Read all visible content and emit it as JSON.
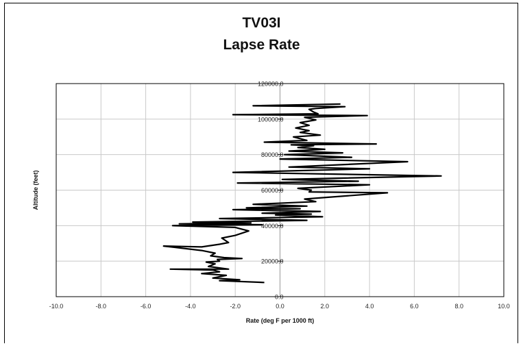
{
  "chart_data": {
    "type": "line",
    "title": "TV03I",
    "subtitle": "Lapse Rate",
    "xlabel": "Rate (deg F per 1000 ft)",
    "ylabel": "Altitude (feet)",
    "xlim": [
      -10.0,
      10.0
    ],
    "ylim": [
      0,
      120000
    ],
    "x_ticks": [
      "-10.0",
      "-8.0",
      "-6.0",
      "-4.0",
      "-2.0",
      "0.0",
      "2.0",
      "4.0",
      "6.0",
      "8.0",
      "10.0"
    ],
    "y_ticks": [
      "0.0",
      "20000.0",
      "40000.0",
      "60000.0",
      "80000.0",
      "100000.0",
      "120000.0"
    ],
    "grid": true,
    "legend": "none",
    "line_color": "#000000",
    "series": [
      {
        "x": [
          -0.7,
          -2.7,
          -1.8,
          -3.0,
          -2.4,
          -3.5,
          -2.7,
          -3.0,
          -4.9,
          -2.3,
          -3.2,
          -2.9,
          -3.3,
          -2.7,
          -2.8,
          -1.7,
          -2.5,
          -3.1,
          -2.9,
          -3.5,
          -5.2,
          -3.5,
          -2.7,
          -2.3,
          -2.6,
          -2.0,
          -1.4,
          -2.0,
          -4.8,
          -0.8,
          -4.5,
          -1.3,
          -3.9,
          1.2,
          -2.7,
          1.9,
          -0.2,
          1.4,
          -0.8,
          1.8,
          -2.1,
          0.9,
          -1.5,
          1.2,
          -1.2,
          1.6,
          1.1,
          4.8,
          1.3,
          1.4,
          0.8,
          4.0,
          -1.9,
          3.5,
          0.1,
          7.2,
          -2.1,
          4.0,
          0.4,
          5.7,
          0.0,
          3.2,
          0.2,
          2.8,
          0.4,
          2.0,
          0.8,
          1.5,
          0.5,
          4.3,
          -0.7,
          1.2,
          0.6,
          1.8,
          0.9,
          1.3,
          0.7,
          1.3,
          0.9,
          1.6,
          1.1,
          3.9,
          -2.1,
          1.7,
          1.5,
          1.3,
          1.6,
          2.9,
          -1.2,
          2.7
        ],
        "y": [
          8000,
          9000,
          9500,
          10500,
          12000,
          13000,
          14000,
          15000,
          15500,
          15500,
          17000,
          18500,
          19500,
          20000,
          21000,
          21500,
          22000,
          23000,
          24500,
          26000,
          28500,
          28000,
          29500,
          30500,
          33000,
          34500,
          37000,
          39000,
          40000,
          40500,
          41000,
          41500,
          42000,
          43000,
          44000,
          45000,
          46000,
          46500,
          47000,
          48000,
          49000,
          49500,
          50000,
          51000,
          52000,
          53500,
          55000,
          58500,
          59000,
          60000,
          61000,
          63000,
          64000,
          65000,
          66000,
          68000,
          70000,
          72000,
          73000,
          76000,
          77500,
          78500,
          80000,
          81000,
          82000,
          83000,
          84000,
          85000,
          85500,
          86000,
          87000,
          88000,
          90000,
          91000,
          92500,
          93500,
          95000,
          96500,
          98000,
          99500,
          101000,
          102000,
          102500,
          103000,
          104000,
          105500,
          106000,
          107000,
          107500,
          108500
        ]
      }
    ]
  }
}
